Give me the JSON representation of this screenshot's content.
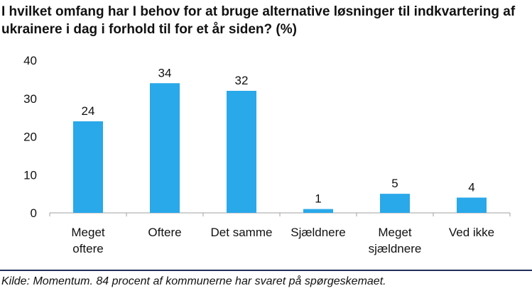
{
  "chart_data": {
    "type": "bar",
    "title": "I hvilket omfang har I behov for at bruge alternative løsninger til indkvartering af ukrainere i dag i forhold til for et år siden? (%)",
    "categories": [
      [
        "Meget",
        "oftere"
      ],
      [
        "Oftere"
      ],
      [
        "Det samme"
      ],
      [
        "Sjældnere"
      ],
      [
        "Meget",
        "sjældnere"
      ],
      [
        "Ved ikke"
      ]
    ],
    "values": [
      24,
      34,
      32,
      1,
      5,
      4
    ],
    "ylim": [
      0,
      40
    ],
    "yticks": [
      0,
      10,
      20,
      30,
      40
    ],
    "grid": false,
    "bar_color": "#29a8ea",
    "data_labels": true
  },
  "source": "Kilde: Momentum. 84 procent af kommunerne har svaret på spørgeskemaet."
}
